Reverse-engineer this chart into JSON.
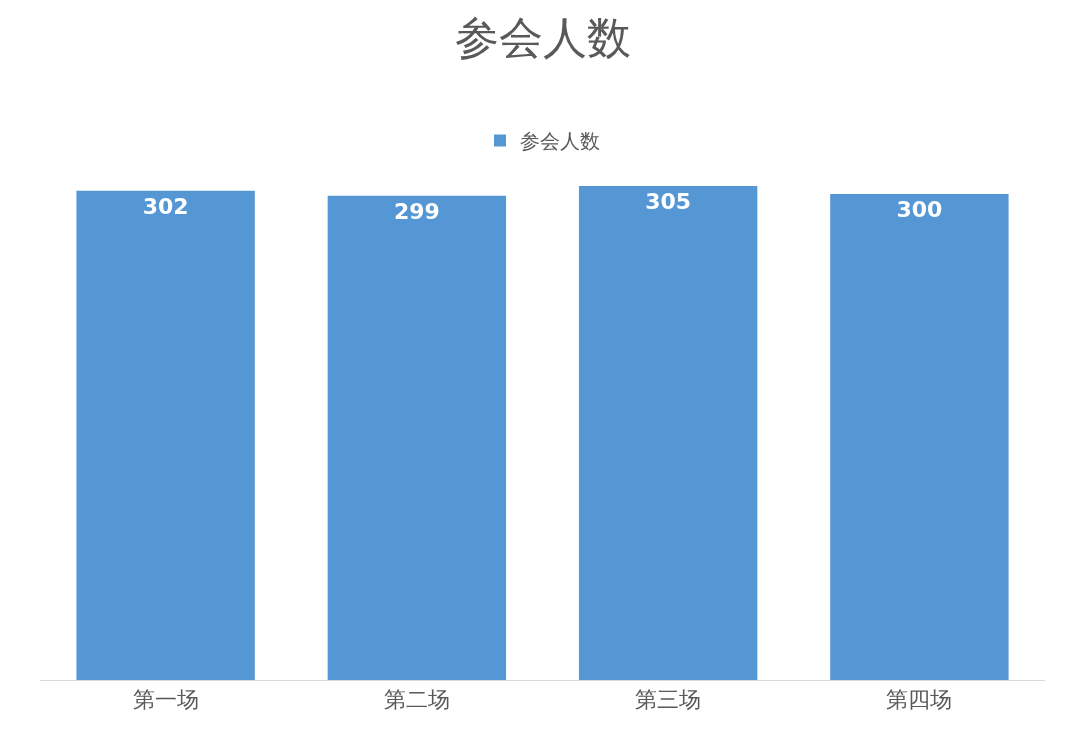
{
  "chart_data": {
    "type": "bar",
    "title": "参会人数",
    "categories": [
      "第一场",
      "第二场",
      "第三场",
      "第四场"
    ],
    "series": [
      {
        "name": "参会人数",
        "color": "#5596d5",
        "values": [
          302,
          299,
          305,
          300
        ]
      }
    ],
    "data_labels": true,
    "legend": "top"
  }
}
